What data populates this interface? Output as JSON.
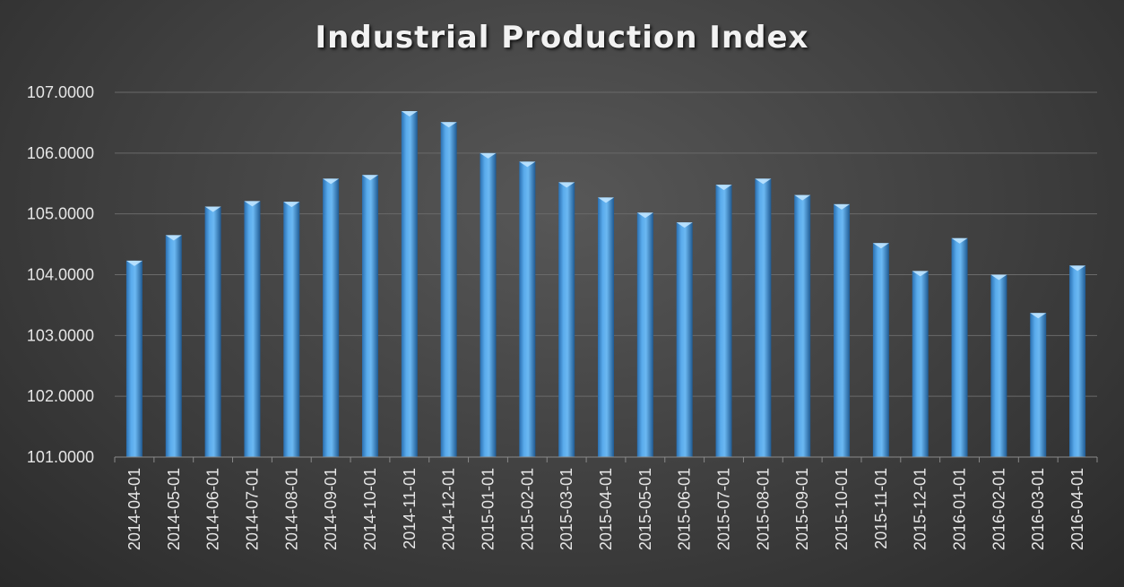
{
  "chart_data": {
    "type": "bar",
    "title": "Industrial Production Index",
    "xlabel": "",
    "ylabel": "",
    "categories": [
      "2014-04-01",
      "2014-05-01",
      "2014-06-01",
      "2014-07-01",
      "2014-08-01",
      "2014-09-01",
      "2014-10-01",
      "2014-11-01",
      "2014-12-01",
      "2015-01-01",
      "2015-02-01",
      "2015-03-01",
      "2015-04-01",
      "2015-05-01",
      "2015-06-01",
      "2015-07-01",
      "2015-08-01",
      "2015-09-01",
      "2015-10-01",
      "2015-11-01",
      "2015-12-01",
      "2016-01-01",
      "2016-02-01",
      "2016-03-01",
      "2016-04-01"
    ],
    "values": [
      104.23,
      104.65,
      105.12,
      105.21,
      105.2,
      105.58,
      105.64,
      106.69,
      106.51,
      106.0,
      105.86,
      105.52,
      105.27,
      105.02,
      104.86,
      105.48,
      105.58,
      105.31,
      105.16,
      104.52,
      104.06,
      104.6,
      104.0,
      103.37,
      104.15
    ],
    "ylim": [
      101,
      107
    ],
    "yticks": [
      101,
      102,
      103,
      104,
      105,
      106,
      107
    ],
    "ytick_labels": [
      "101.0000",
      "102.0000",
      "103.0000",
      "104.0000",
      "105.0000",
      "106.0000",
      "107.0000"
    ],
    "grid": true,
    "legend": "none",
    "colors": {
      "bar": "#4a9fe6",
      "bar_light": "#8fc8f7",
      "bar_dark": "#1f5f99",
      "bar_top": "#bfe4ff",
      "grid": "#6a6a6a",
      "text": "#e6e6e6"
    }
  }
}
